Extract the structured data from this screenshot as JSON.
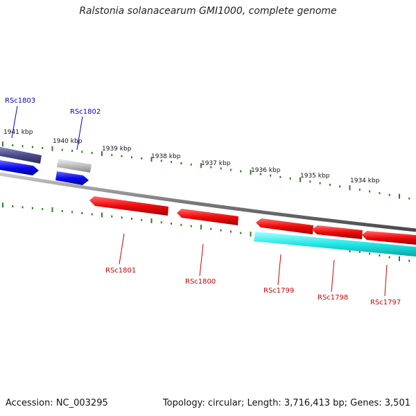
{
  "header": {
    "title": "Ralstonia solanacearum GMI1000, complete genome"
  },
  "footer": {
    "accession": "Accession: NC_003295",
    "summary": "Topology: circular; Length: 3,716,413 bp; Genes: 3,501"
  },
  "ruler": {
    "labels": [
      "1941 kbp",
      "1940 kbp",
      "1939 kbp",
      "1938 kbp",
      "1937 kbp",
      "1936 kbp",
      "1935 kbp",
      "1934 kbp"
    ],
    "tick_color": "#2e7d1f"
  },
  "genes": {
    "forward": [
      {
        "name": "RSc1803",
        "color": "#0000cc"
      },
      {
        "name": "RSc1802",
        "color": "#0000cc"
      }
    ],
    "reverse": [
      {
        "name": "RSc1801",
        "color": "#cc0000"
      },
      {
        "name": "RSc1800",
        "color": "#cc0000"
      },
      {
        "name": "RSc1799",
        "color": "#cc0000"
      },
      {
        "name": "RSc1798",
        "color": "#cc0000"
      },
      {
        "name": "RSc1797",
        "color": "#cc0000"
      }
    ]
  },
  "colors": {
    "forward_gene": "#1a1aff",
    "reverse_gene": "#ff1a1a",
    "forward_cds": "#4a4a8a",
    "reverse_cds": "#22e6e6",
    "backbone": "#7a7a7a"
  }
}
